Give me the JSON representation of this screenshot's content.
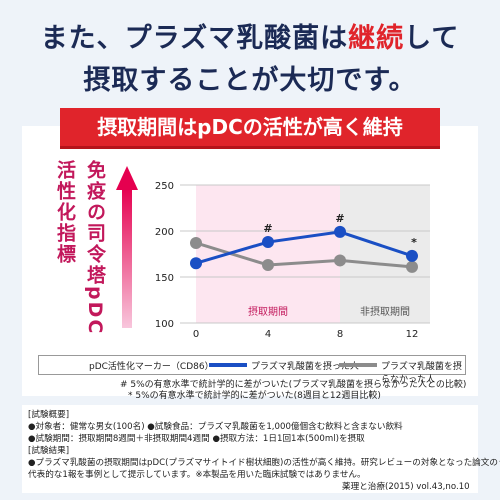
{
  "headline": {
    "line1_pre": "また、プラズマ乳酸菌は",
    "line1_red": "継続",
    "line1_post": "して",
    "line2": "摂取することが大切です。"
  },
  "banner": "摂取期間はpDCの活性が高く維持",
  "vertical_label": "免疫の司令塔pDC 活性化指標",
  "chart_data": {
    "type": "line",
    "x": [
      0,
      4,
      8,
      12
    ],
    "ylim": [
      100,
      250
    ],
    "yticks": [
      "100",
      "150",
      "200",
      "250"
    ],
    "xticks": [
      "0",
      "4",
      "8",
      "12"
    ],
    "regions": [
      "摂取期間",
      "非摂取期間"
    ],
    "series": [
      {
        "name": "プラズマ乳酸菌を摂った人",
        "values": [
          165,
          188,
          199,
          173
        ],
        "color": "#1a4fc4"
      },
      {
        "name": "プラズマ乳酸菌を摂らなかった人",
        "values": [
          187,
          163,
          168,
          161
        ],
        "color": "#8c8c8c"
      }
    ],
    "markers": [
      "",
      "#",
      "#",
      "*"
    ]
  },
  "legend": {
    "title": "pDC活性化マーカー（CD86）",
    "s1": "プラズマ乳酸菌を摂った人",
    "s2": "プラズマ乳酸菌を摂らなかった人"
  },
  "notes": {
    "n1": "# 5%の有意水準で統計学的に差がついた(プラズマ乳酸菌を摂らなかった人との比較)",
    "n2": "* 5%の有意水準で統計学的に差がついた(8週目と12週目比較)"
  },
  "info": {
    "h1": "[試験概要]",
    "l1": "●対象者：健常な男女(100名) ●試験食品：プラズマ乳酸菌を1,000億個含む飲料と含まない飲料",
    "l2": "●試験期間：摂取期間8週間＋非摂取期間4週間 ●摂取方法：1日1回1本(500ml)を摂取",
    "h2": "[試験結果]",
    "l3": "●プラズマ乳酸菌の摂取期間はpDC(プラズマサイトイド樹状細胞)の活性が高く維持。研究レビューの対象となった論文のうち",
    "l4": "代表的な1報を事例として提示しています。※本製品を用いた臨床試験ではありません。",
    "source": "薬理と治療(2015) vol.43,no.10"
  }
}
